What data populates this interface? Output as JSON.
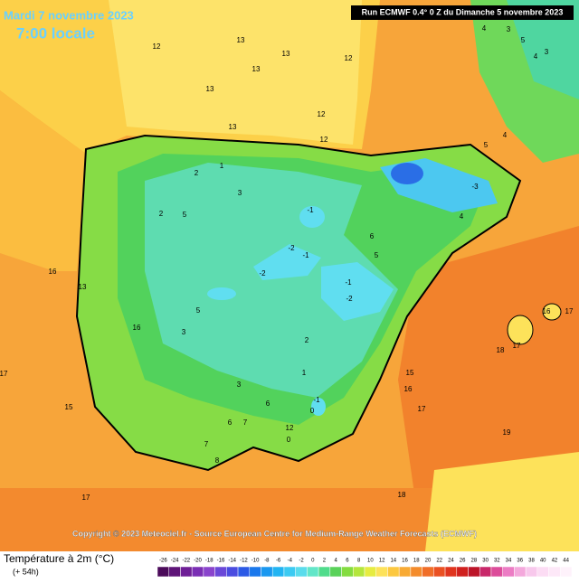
{
  "header": {
    "title": "Mardi 7 novembre 2023",
    "time": "7:00 locale",
    "run": "Run ECMWF 0.4° 0 Z du Dimanche 5 novembre 2023"
  },
  "copyright": "Copyright © 2023 Meteociel.fr - Source European Centre for Medium-Range Weather Forecasts (ECMWF)",
  "legend": {
    "title": "Température à 2m (°C)",
    "subtitle": "(+ 54h)",
    "ticks": [
      -26,
      -24,
      -22,
      -20,
      -18,
      -16,
      -14,
      -12,
      -10,
      -8,
      -6,
      -4,
      -2,
      0,
      2,
      4,
      6,
      8,
      10,
      12,
      14,
      16,
      18,
      20,
      22,
      24,
      26,
      28,
      30,
      32,
      34,
      36,
      38,
      40,
      42,
      44
    ],
    "colors": [
      "#4b0a5a",
      "#5e1478",
      "#6e1e96",
      "#7a2eb4",
      "#8a44cc",
      "#6a48d8",
      "#4a4ce0",
      "#2c5ae6",
      "#1a78ec",
      "#1a98f0",
      "#22b4f2",
      "#3ccaf2",
      "#5adcec",
      "#62e6c8",
      "#50dc8c",
      "#5ad25a",
      "#84dc40",
      "#b4e63c",
      "#e6ec40",
      "#fde25a",
      "#fcc840",
      "#f8aa34",
      "#f48c2c",
      "#f06e28",
      "#ea5022",
      "#e0341e",
      "#d0201e",
      "#bc1428",
      "#c8286a",
      "#dc4c9a",
      "#ec7cc4",
      "#f4a8dc",
      "#f8c8ec",
      "#fcdcf4",
      "#fde8f8",
      "#fef2fb"
    ]
  },
  "map": {
    "labels": [
      "12",
      "13",
      "13",
      "13",
      "12",
      "12",
      "13",
      "13",
      "12",
      "4",
      "3",
      "5",
      "4",
      "3",
      "5",
      "4",
      "2",
      "1",
      "3",
      "2",
      "5",
      "-1",
      "-2",
      "-1",
      "-2",
      "-1",
      "-2",
      "-3",
      "4",
      "6",
      "5",
      "16",
      "13",
      "17",
      "15",
      "16",
      "17",
      "19",
      "18",
      "17",
      "16",
      "17",
      "5",
      "3",
      "2",
      "1",
      "3",
      "6",
      "7",
      "6",
      "7",
      "8",
      "12",
      "0",
      "0",
      "-1",
      "17",
      "18",
      "16",
      "15"
    ]
  }
}
